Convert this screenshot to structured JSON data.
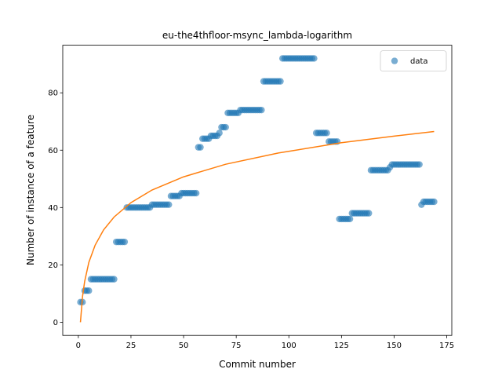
{
  "chart_data": {
    "type": "scatter",
    "title": "eu-the4thfloor-msync_lambda-logarithm",
    "xlabel": "Commit number",
    "ylabel": "Number of instance of a feature",
    "xlim": [
      -7.4,
      177.4
    ],
    "ylim": [
      -4.6,
      96.6
    ],
    "xticks": [
      0,
      25,
      50,
      75,
      100,
      125,
      150,
      175
    ],
    "yticks": [
      0,
      20,
      40,
      60,
      80
    ],
    "legend": "upper right",
    "series": [
      {
        "name": "data",
        "color": "#1f77b4",
        "kind": "scatter",
        "x": [
          1,
          2,
          3,
          4,
          5,
          6,
          7,
          8,
          9,
          10,
          11,
          12,
          13,
          14,
          15,
          16,
          17,
          18,
          19,
          20,
          21,
          22,
          23,
          24,
          25,
          26,
          27,
          28,
          29,
          30,
          31,
          32,
          33,
          34,
          35,
          36,
          37,
          38,
          39,
          40,
          41,
          42,
          43,
          44,
          45,
          46,
          47,
          48,
          49,
          50,
          51,
          52,
          53,
          54,
          55,
          56,
          57,
          58,
          59,
          60,
          61,
          62,
          63,
          64,
          65,
          66,
          67,
          68,
          69,
          70,
          71,
          72,
          73,
          74,
          75,
          76,
          77,
          78,
          79,
          80,
          81,
          82,
          83,
          84,
          85,
          86,
          87,
          88,
          89,
          90,
          91,
          92,
          93,
          94,
          95,
          96,
          97,
          98,
          99,
          100,
          101,
          102,
          103,
          104,
          105,
          106,
          107,
          108,
          109,
          110,
          111,
          112,
          113,
          114,
          115,
          116,
          117,
          118,
          119,
          120,
          121,
          122,
          123,
          124,
          125,
          126,
          127,
          128,
          129,
          130,
          131,
          132,
          133,
          134,
          135,
          136,
          137,
          138,
          139,
          140,
          141,
          142,
          143,
          144,
          145,
          146,
          147,
          148,
          149,
          150,
          151,
          152,
          153,
          154,
          155,
          156,
          157,
          158,
          159,
          160,
          161,
          162,
          163,
          164,
          165,
          166,
          167,
          168,
          169
        ],
        "values": [
          7,
          7,
          11,
          11,
          11,
          15,
          15,
          15,
          15,
          15,
          15,
          15,
          15,
          15,
          15,
          15,
          15,
          28,
          28,
          28,
          28,
          28,
          40,
          40,
          40,
          40,
          40,
          40,
          40,
          40,
          40,
          40,
          40,
          40,
          41,
          41,
          41,
          41,
          41,
          41,
          41,
          41,
          41,
          44,
          44,
          44,
          44,
          44,
          45,
          45,
          45,
          45,
          45,
          45,
          45,
          45,
          61,
          61,
          64,
          64,
          64,
          64,
          65,
          65,
          65,
          65,
          66,
          68,
          68,
          68,
          73,
          73,
          73,
          73,
          73,
          73,
          74,
          74,
          74,
          74,
          74,
          74,
          74,
          74,
          74,
          74,
          74,
          84,
          84,
          84,
          84,
          84,
          84,
          84,
          84,
          84,
          92,
          92,
          92,
          92,
          92,
          92,
          92,
          92,
          92,
          92,
          92,
          92,
          92,
          92,
          92,
          92,
          66,
          66,
          66,
          66,
          66,
          66,
          63,
          63,
          63,
          63,
          63,
          36,
          36,
          36,
          36,
          36,
          36,
          38,
          38,
          38,
          38,
          38,
          38,
          38,
          38,
          38,
          53,
          53,
          53,
          53,
          53,
          53,
          53,
          53,
          53,
          54,
          55,
          55,
          55,
          55,
          55,
          55,
          55,
          55,
          55,
          55,
          55,
          55,
          55,
          55,
          41,
          42,
          42,
          42,
          42,
          42,
          42
        ]
      },
      {
        "color": "#ff7f0e",
        "kind": "line",
        "x": [
          1,
          2,
          3,
          5,
          8,
          12,
          17,
          25,
          35,
          50,
          70,
          95,
          125,
          150,
          169
        ],
        "values": [
          0,
          9.0,
          14.2,
          20.9,
          26.9,
          32.2,
          36.7,
          41.7,
          46.1,
          50.7,
          55.1,
          59.0,
          62.6,
          64.9,
          66.5
        ]
      }
    ]
  }
}
